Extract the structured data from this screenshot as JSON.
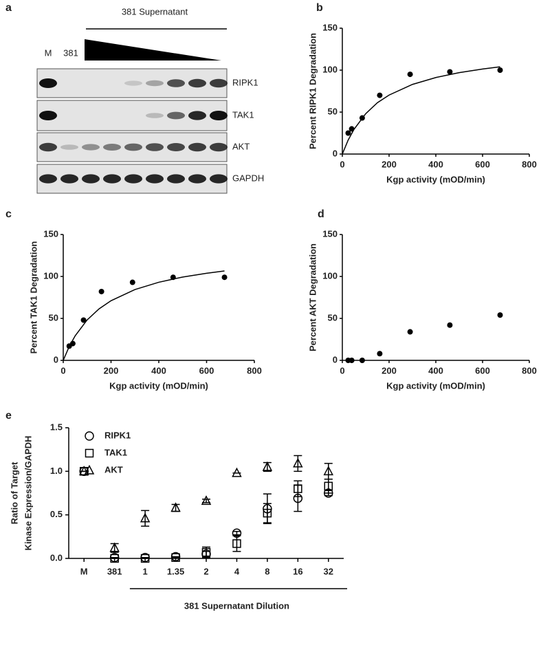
{
  "blot": {
    "label": "a",
    "title": "381 Supernatant",
    "lanes": [
      "M",
      "381"
    ],
    "rows": [
      "RIPK1",
      "TAK1",
      "AKT",
      "GAPDH"
    ]
  },
  "chart_data": [
    {
      "type": "scatter",
      "label": "b",
      "xlabel": "Kgp activity (mOD/min)",
      "ylabel": "Percent RIPK1 Degradation",
      "x": [
        25,
        40,
        85,
        160,
        290,
        460,
        675
      ],
      "values": [
        25,
        30,
        43,
        70,
        95,
        98,
        100
      ],
      "color": "#000000",
      "fit_x": [
        0,
        25,
        50,
        100,
        150,
        200,
        300,
        400,
        500,
        600,
        675
      ],
      "fit_values": [
        0,
        16.7,
        29.5,
        48.1,
        61.2,
        70.3,
        83.0,
        91.2,
        97.0,
        101.3,
        104.0
      ],
      "xlim": [
        0,
        800
      ],
      "xticks": [
        0,
        200,
        400,
        600,
        800
      ],
      "ylim": [
        0,
        150
      ],
      "yticks": [
        0,
        50,
        100,
        150
      ]
    },
    {
      "type": "scatter",
      "label": "c",
      "xlabel": "Kgp activity (mOD/min)",
      "ylabel": "Percent TAK1 Degradation",
      "x": [
        25,
        40,
        85,
        160,
        290,
        460,
        675
      ],
      "values": [
        17,
        20,
        48,
        82,
        93,
        99,
        99
      ],
      "color": "#000000",
      "fit_x": [
        0,
        25,
        50,
        100,
        150,
        200,
        300,
        400,
        500,
        600,
        675
      ],
      "fit_values": [
        0,
        16.5,
        29.3,
        48.2,
        61.4,
        71.1,
        84.4,
        93.1,
        99.3,
        103.8,
        106.6
      ],
      "xlim": [
        0,
        800
      ],
      "xticks": [
        0,
        200,
        400,
        600,
        800
      ],
      "ylim": [
        0,
        150
      ],
      "yticks": [
        0,
        50,
        100,
        150
      ]
    },
    {
      "type": "scatter",
      "label": "d",
      "xlabel": "Kgp activity (mOD/min)",
      "ylabel": "Percent AKT Degradation",
      "x": [
        25,
        40,
        85,
        160,
        290,
        460,
        675
      ],
      "values": [
        0,
        0,
        0,
        8,
        34,
        42,
        54
      ],
      "color": "#000000",
      "xlim": [
        0,
        800
      ],
      "xticks": [
        0,
        200,
        400,
        600,
        800
      ],
      "ylim": [
        0,
        150
      ],
      "yticks": [
        0,
        50,
        100,
        150
      ]
    },
    {
      "type": "errorpoints",
      "label": "e",
      "xlabel": "381 Supernatant Dilution",
      "ylabel": [
        "Ratio of Target",
        "Kinase Expression/GAPDH"
      ],
      "categories": [
        "M",
        "381",
        "1",
        "1.35",
        "2",
        "4",
        "8",
        "16",
        "32"
      ],
      "series": [
        {
          "name": "RIPK1",
          "marker": "circle",
          "color": "#000000",
          "values": [
            1.0,
            0.01,
            0.01,
            0.02,
            0.05,
            0.29,
            0.57,
            0.69,
            0.75
          ],
          "errors": [
            0,
            0,
            0,
            0,
            0.03,
            0.02,
            0.17,
            0.15,
            0.03
          ]
        },
        {
          "name": "TAK1",
          "marker": "square",
          "color": "#000000",
          "values": [
            1.0,
            0.0,
            0.0,
            0.01,
            0.07,
            0.17,
            0.52,
            0.8,
            0.83
          ],
          "errors": [
            0,
            0,
            0,
            0,
            0.06,
            0.09,
            0.11,
            0.09,
            0.08
          ]
        },
        {
          "name": "AKT",
          "marker": "triangle",
          "color": "#000000",
          "values": [
            1.0,
            0.12,
            0.46,
            0.58,
            0.66,
            0.98,
            1.05,
            1.09,
            1.0
          ],
          "errors": [
            0,
            0.05,
            0.09,
            0.04,
            0.02,
            0,
            0.05,
            0.09,
            0.09
          ]
        }
      ],
      "ylim": [
        0,
        1.5
      ],
      "yticks": [
        {
          "value": 0,
          "label": "0.0"
        },
        0.5,
        {
          "value": 1,
          "label": "1.0"
        },
        1.5
      ]
    }
  ]
}
